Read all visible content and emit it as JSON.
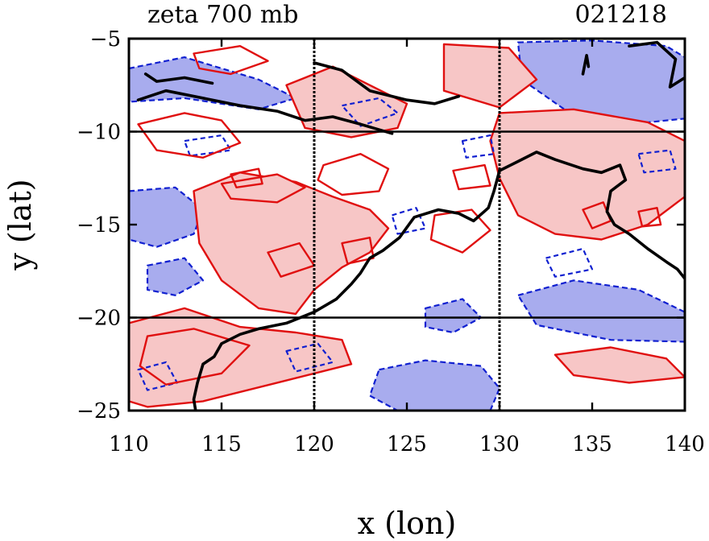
{
  "chart_data": {
    "type": "contour",
    "title_left": "zeta 700 mb",
    "title_right": "021218",
    "xlabel": "x (lon)",
    "ylabel": "y (lat)",
    "xlim": [
      110,
      140
    ],
    "ylim": [
      -25,
      -5
    ],
    "x_ticks": [
      110,
      115,
      120,
      125,
      130,
      135,
      140
    ],
    "y_ticks": [
      -5,
      -10,
      -15,
      -20,
      -25
    ],
    "x_tick_labels": [
      "110",
      "115",
      "120",
      "125",
      "130",
      "135",
      "140"
    ],
    "y_tick_labels": [
      "−5",
      "−10",
      "−15",
      "−20",
      "−25"
    ],
    "grid_lon": [
      120,
      130
    ],
    "grid_lat": [
      -10,
      -20
    ],
    "legend": "none",
    "colors": {
      "positive_fill": "#f7c6c6",
      "positive_line": "#e01010",
      "negative_fill": "#a8acee",
      "negative_line": "#1020d0",
      "coastline": "#000000",
      "grid": "#000000"
    },
    "positive_regions": [
      {
        "name": "gulf-carpentaria-belt",
        "pts": [
          [
            130,
            -9
          ],
          [
            134,
            -8.8
          ],
          [
            138,
            -9.5
          ],
          [
            140,
            -10.5
          ],
          [
            140,
            -13.5
          ],
          [
            138,
            -15
          ],
          [
            135.5,
            -15.8
          ],
          [
            133,
            -15.5
          ],
          [
            131,
            -14.5
          ],
          [
            130,
            -12.5
          ],
          [
            129.5,
            -10.5
          ]
        ]
      },
      {
        "name": "central-ridge",
        "pts": [
          [
            113.5,
            -13.2
          ],
          [
            116,
            -12.2
          ],
          [
            119,
            -12.7
          ],
          [
            121,
            -13.5
          ],
          [
            123,
            -14.2
          ],
          [
            124,
            -15.2
          ],
          [
            123,
            -16.5
          ],
          [
            121.5,
            -17.3
          ],
          [
            120,
            -18.5
          ],
          [
            119,
            -19.8
          ],
          [
            117,
            -19.5
          ],
          [
            115,
            -18
          ],
          [
            113.8,
            -16
          ]
        ]
      },
      {
        "name": "sw-band",
        "pts": [
          [
            110,
            -20.3
          ],
          [
            113,
            -19.5
          ],
          [
            116,
            -20.5
          ],
          [
            119,
            -20.8
          ],
          [
            121.5,
            -21.2
          ],
          [
            122,
            -22.5
          ],
          [
            118,
            -23.5
          ],
          [
            114,
            -24.5
          ],
          [
            111,
            -24.8
          ],
          [
            110,
            -24.5
          ]
        ]
      },
      {
        "name": "north-streak",
        "pts": [
          [
            118.5,
            -7.5
          ],
          [
            121,
            -6.5
          ],
          [
            123,
            -7.5
          ],
          [
            125,
            -8.5
          ],
          [
            124.5,
            -9.8
          ],
          [
            122,
            -10.3
          ],
          [
            119.5,
            -9.8
          ]
        ]
      },
      {
        "name": "east-ne-patch",
        "pts": [
          [
            127,
            -5.3
          ],
          [
            130.5,
            -5.5
          ],
          [
            132,
            -7.2
          ],
          [
            130,
            -8.7
          ],
          [
            127,
            -7.8
          ]
        ]
      },
      {
        "name": "se-streak",
        "pts": [
          [
            133,
            -22
          ],
          [
            136,
            -21.6
          ],
          [
            139,
            -22.2
          ],
          [
            140,
            -23.2
          ],
          [
            137,
            -23.5
          ],
          [
            134,
            -23.1
          ]
        ]
      },
      {
        "name": "coast-strip",
        "pts": [
          [
            115,
            -12.8
          ],
          [
            118,
            -12.3
          ],
          [
            119.5,
            -13
          ],
          [
            118,
            -13.8
          ],
          [
            115.5,
            -13.6
          ]
        ]
      }
    ],
    "negative_regions": [
      {
        "name": "ne-band",
        "pts": [
          [
            131,
            -5.2
          ],
          [
            135,
            -5.1
          ],
          [
            139,
            -5.4
          ],
          [
            140,
            -6
          ],
          [
            140,
            -9.3
          ],
          [
            137,
            -9.6
          ],
          [
            133.5,
            -8.8
          ],
          [
            131.2,
            -7.2
          ]
        ]
      },
      {
        "name": "north-strip",
        "pts": [
          [
            110,
            -6.6
          ],
          [
            113,
            -6
          ],
          [
            117,
            -7.2
          ],
          [
            119,
            -8.2
          ],
          [
            117,
            -8.8
          ],
          [
            113,
            -8.2
          ],
          [
            110,
            -8.4
          ]
        ]
      },
      {
        "name": "west-patch",
        "pts": [
          [
            110,
            -13.2
          ],
          [
            112.5,
            -13
          ],
          [
            114,
            -14.2
          ],
          [
            113.5,
            -15.5
          ],
          [
            111.5,
            -16.2
          ],
          [
            110,
            -15.8
          ]
        ]
      },
      {
        "name": "south-central",
        "pts": [
          [
            123.5,
            -22.8
          ],
          [
            126,
            -22.3
          ],
          [
            129,
            -22.6
          ],
          [
            130,
            -23.8
          ],
          [
            129.5,
            -25
          ],
          [
            124.5,
            -25
          ],
          [
            123,
            -24.2
          ]
        ]
      },
      {
        "name": "se-patch",
        "pts": [
          [
            131,
            -18.8
          ],
          [
            134,
            -18
          ],
          [
            137.5,
            -18.5
          ],
          [
            140,
            -19.7
          ],
          [
            140,
            -21.3
          ],
          [
            136,
            -21.2
          ],
          [
            132,
            -20.4
          ]
        ]
      },
      {
        "name": "west-mid",
        "pts": [
          [
            111,
            -17.2
          ],
          [
            113,
            -16.8
          ],
          [
            114,
            -18
          ],
          [
            112.5,
            -18.8
          ],
          [
            111,
            -18.5
          ]
        ]
      },
      {
        "name": "central-island",
        "pts": [
          [
            126,
            -19.5
          ],
          [
            128,
            -19
          ],
          [
            129,
            -20
          ],
          [
            127.5,
            -20.8
          ],
          [
            126,
            -20.5
          ]
        ]
      }
    ],
    "positive_contours": [
      [
        [
          110.5,
          -9.6
        ],
        [
          113,
          -9
        ],
        [
          115,
          -9.4
        ],
        [
          116,
          -10.6
        ],
        [
          114,
          -11.4
        ],
        [
          111.5,
          -11
        ]
      ],
      [
        [
          120.5,
          -11.8
        ],
        [
          122.5,
          -11.2
        ],
        [
          124,
          -12
        ],
        [
          123.5,
          -13.2
        ],
        [
          121.5,
          -13.4
        ],
        [
          120.2,
          -12.6
        ]
      ],
      [
        [
          115.5,
          -12.3
        ],
        [
          117,
          -12
        ],
        [
          117.2,
          -12.8
        ],
        [
          115.8,
          -13
        ]
      ],
      [
        [
          134.5,
          -14.2
        ],
        [
          135.6,
          -13.8
        ],
        [
          136,
          -14.8
        ],
        [
          135,
          -15.2
        ]
      ],
      [
        [
          137.5,
          -14.3
        ],
        [
          138.5,
          -14.1
        ],
        [
          138.7,
          -15
        ],
        [
          137.7,
          -15.1
        ]
      ],
      [
        [
          111,
          -21
        ],
        [
          113.5,
          -20.6
        ],
        [
          116.5,
          -21.5
        ],
        [
          115,
          -23
        ],
        [
          112,
          -23.6
        ],
        [
          110.6,
          -22.6
        ]
      ],
      [
        [
          126.5,
          -14.5
        ],
        [
          128.5,
          -14.2
        ],
        [
          129.5,
          -15.3
        ],
        [
          128,
          -16.5
        ],
        [
          126.3,
          -15.8
        ]
      ],
      [
        [
          113.5,
          -5.8
        ],
        [
          116,
          -5.4
        ],
        [
          117.5,
          -6.2
        ],
        [
          115.5,
          -6.9
        ],
        [
          113.8,
          -6.6
        ]
      ],
      [
        [
          127.5,
          -12.1
        ],
        [
          129.2,
          -11.8
        ],
        [
          129.5,
          -12.9
        ],
        [
          127.8,
          -13.1
        ]
      ],
      [
        [
          117.5,
          -16.5
        ],
        [
          119.2,
          -16
        ],
        [
          120,
          -17.2
        ],
        [
          118.2,
          -17.8
        ]
      ],
      [
        [
          121.5,
          -16
        ],
        [
          123,
          -15.7
        ],
        [
          123.2,
          -16.8
        ],
        [
          121.8,
          -17.1
        ]
      ]
    ],
    "negative_contours": [
      [
        [
          121.5,
          -8.6
        ],
        [
          123.5,
          -8.2
        ],
        [
          124.5,
          -9
        ],
        [
          122.5,
          -9.7
        ]
      ],
      [
        [
          113,
          -10.5
        ],
        [
          115,
          -10.2
        ],
        [
          115.5,
          -11
        ],
        [
          113.3,
          -11.3
        ]
      ],
      [
        [
          124.2,
          -14.5
        ],
        [
          125.5,
          -14.1
        ],
        [
          126,
          -15.2
        ],
        [
          124.5,
          -15.5
        ]
      ],
      [
        [
          118.5,
          -21.8
        ],
        [
          120.2,
          -21.4
        ],
        [
          121,
          -22.4
        ],
        [
          119,
          -22.9
        ]
      ],
      [
        [
          110.5,
          -22.8
        ],
        [
          112,
          -22.4
        ],
        [
          112.6,
          -23.5
        ],
        [
          111,
          -23.9
        ]
      ],
      [
        [
          132.5,
          -16.8
        ],
        [
          134.5,
          -16.3
        ],
        [
          135,
          -17.4
        ],
        [
          133,
          -17.8
        ]
      ],
      [
        [
          128,
          -10.5
        ],
        [
          129.5,
          -10.2
        ],
        [
          129.7,
          -11.2
        ],
        [
          128.2,
          -11.4
        ]
      ],
      [
        [
          137.5,
          -11.2
        ],
        [
          139.2,
          -11
        ],
        [
          139.5,
          -12
        ],
        [
          137.8,
          -12.2
        ]
      ]
    ],
    "coastlines": [
      [
        [
          110.5,
          -8.3
        ],
        [
          112,
          -7.8
        ],
        [
          114,
          -8.2
        ],
        [
          116,
          -8.6
        ],
        [
          118,
          -8.9
        ],
        [
          119.5,
          -9.4
        ],
        [
          121,
          -9.2
        ],
        [
          122.5,
          -9.6
        ],
        [
          124.2,
          -10.1
        ]
      ],
      [
        [
          120,
          -6.3
        ],
        [
          121.5,
          -6.7
        ],
        [
          123,
          -7.8
        ],
        [
          125,
          -8.3
        ],
        [
          126.5,
          -8.5
        ],
        [
          127.8,
          -8.1
        ]
      ],
      [
        [
          110.9,
          -6.9
        ],
        [
          111.5,
          -7.3
        ],
        [
          113,
          -7.1
        ],
        [
          114.5,
          -7.4
        ]
      ],
      [
        [
          134.5,
          -6.9
        ],
        [
          134.7,
          -5.9
        ],
        [
          134.8,
          -6.5
        ]
      ],
      [
        [
          137,
          -5.4
        ],
        [
          138.5,
          -5.2
        ],
        [
          139.5,
          -6.1
        ],
        [
          139.2,
          -7.6
        ],
        [
          140,
          -7.1
        ]
      ],
      [
        [
          130,
          -12.1
        ],
        [
          131,
          -11.6
        ],
        [
          132,
          -11.1
        ],
        [
          133,
          -11.5
        ],
        [
          134.5,
          -12
        ],
        [
          135.5,
          -12.2
        ],
        [
          136.5,
          -11.8
        ],
        [
          136.8,
          -12.6
        ],
        [
          136,
          -13.2
        ],
        [
          135.8,
          -14.3
        ],
        [
          136.2,
          -15
        ],
        [
          137,
          -15.5
        ],
        [
          138,
          -16.3
        ],
        [
          139,
          -17
        ],
        [
          139.6,
          -17.4
        ],
        [
          140,
          -17.9
        ]
      ],
      [
        [
          130,
          -12.1
        ],
        [
          129.7,
          -13.2
        ],
        [
          129.4,
          -14.1
        ],
        [
          128.6,
          -14.8
        ],
        [
          127.8,
          -14.4
        ],
        [
          126.7,
          -14.2
        ],
        [
          125.4,
          -14.6
        ],
        [
          124.6,
          -15.7
        ],
        [
          123.7,
          -16.4
        ],
        [
          123,
          -16.8
        ],
        [
          122.5,
          -17.6
        ],
        [
          122,
          -18.2
        ],
        [
          121.2,
          -19
        ],
        [
          120,
          -19.7
        ],
        [
          118.5,
          -20.3
        ],
        [
          117,
          -20.6
        ],
        [
          116,
          -20.9
        ],
        [
          115,
          -21.4
        ],
        [
          114.6,
          -22.1
        ],
        [
          114,
          -22.5
        ],
        [
          113.7,
          -23.5
        ],
        [
          113.5,
          -24.4
        ],
        [
          113.6,
          -25
        ]
      ]
    ]
  }
}
